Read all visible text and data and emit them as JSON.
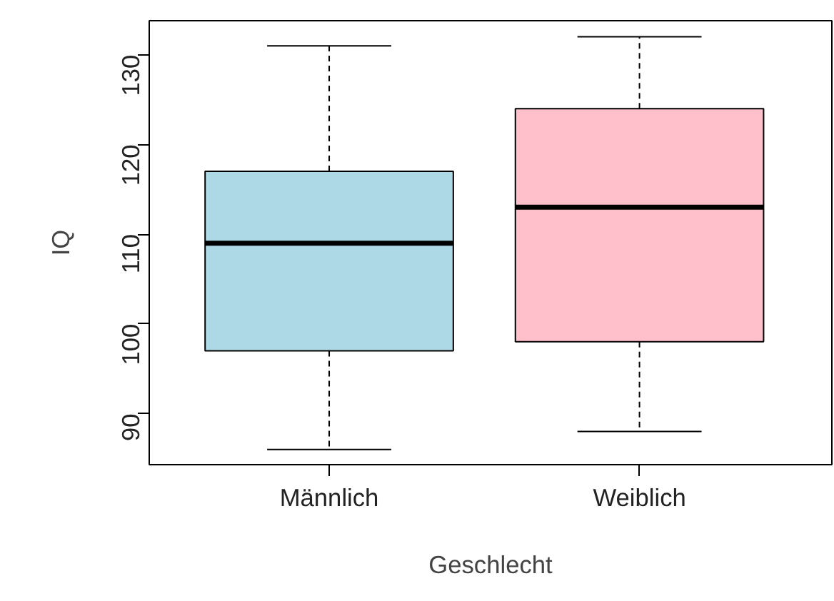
{
  "chart_data": {
    "type": "box",
    "xlabel": "Geschlecht",
    "ylabel": "IQ",
    "categories": [
      "Männlich",
      "Weiblich"
    ],
    "colors": [
      "#add8e6",
      "#ffc0cb"
    ],
    "boxes": [
      {
        "low": 86,
        "q1": 97,
        "median": 109,
        "q3": 117,
        "high": 131
      },
      {
        "low": 88,
        "q1": 98,
        "median": 113,
        "q3": 124,
        "high": 132
      }
    ],
    "ylim": [
      84.3,
      133.8
    ],
    "yticks": [
      90,
      100,
      110,
      120,
      130
    ],
    "grid": false
  }
}
